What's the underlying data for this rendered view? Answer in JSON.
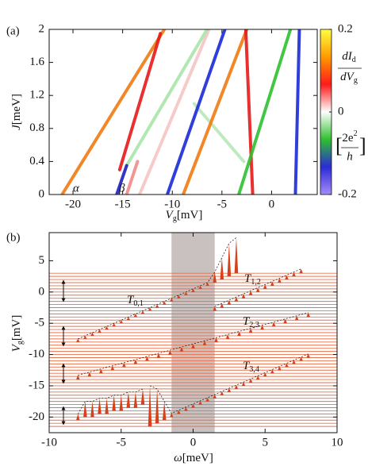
{
  "chart_data": [
    {
      "type": "line",
      "panel_label": "(a)",
      "x_label": {
        "var": "V",
        "sub": "g",
        "unit": "[mV]"
      },
      "y_label": {
        "var": "J",
        "unit": "[meV]"
      },
      "xlim": [
        -22.4,
        4.6
      ],
      "xticks": [
        -20,
        -15,
        -10,
        -5,
        0
      ],
      "ylim": [
        0,
        2
      ],
      "yticks": [
        0,
        0.4,
        0.8,
        1.2,
        1.6,
        2
      ],
      "series": [
        {
          "color": "#f6c4c4",
          "x": [
            -13.3,
            -6.3
          ],
          "values": [
            0,
            2
          ]
        },
        {
          "color": "#b8e8b8",
          "x": [
            -2.8,
            -7.8
          ],
          "values": [
            0.4,
            1.1
          ]
        },
        {
          "color": "#a8e4a8",
          "x": [
            -14.6,
            -6.5
          ],
          "values": [
            0.35,
            2
          ]
        },
        {
          "color": "#f08a8a",
          "x": [
            -14.6,
            -13.5
          ],
          "values": [
            0,
            0.4
          ]
        },
        {
          "color": "#f07a10",
          "x": [
            -21.1,
            -10.8
          ],
          "values": [
            0,
            2
          ]
        },
        {
          "color": "#e51a1a",
          "x": [
            -15.3,
            -11.2
          ],
          "values": [
            0.3,
            1.95
          ]
        },
        {
          "color": "#2020c0",
          "x": [
            -15.6,
            -14.6
          ],
          "values": [
            0,
            0.35
          ]
        },
        {
          "color": "#1a2ad8",
          "x": [
            -10.5,
            -4.7
          ],
          "values": [
            0,
            2
          ]
        },
        {
          "color": "#f07a10",
          "x": [
            -8.9,
            -2.5
          ],
          "values": [
            0,
            2
          ]
        },
        {
          "color": "#e51a1a",
          "x": [
            -1.9,
            -2.6
          ],
          "values": [
            0,
            2
          ]
        },
        {
          "color": "#2fc02f",
          "x": [
            -3.3,
            1.9
          ],
          "values": [
            0,
            2
          ]
        },
        {
          "color": "#1a2ad8",
          "x": [
            2.4,
            2.8
          ],
          "values": [
            0,
            2
          ]
        }
      ],
      "annotations": [
        "α",
        "β"
      ],
      "colorbar": {
        "lim": [
          -0.2,
          0.2
        ],
        "ticks": [
          -0.2,
          0,
          0.2
        ],
        "colors": [
          "#a58cf8",
          "#2b2bd6",
          "#2fbf2f",
          "#ffffff",
          "#ff1a1a",
          "#ff9a00",
          "#ffff40"
        ],
        "label": {
          "num": "dI",
          "num_sub": "d",
          "den": "dV",
          "den_sub": "g",
          "open": "[",
          "unit_num": "2e",
          "unit_sup": "2",
          "unit_den": "h",
          "close": "]"
        }
      }
    },
    {
      "type": "waterfall",
      "panel_label": "(b)",
      "x_label": {
        "var": "ω",
        "unit": "[meV]"
      },
      "y_label": {
        "var": "V",
        "sub": "g",
        "unit": "[mV]"
      },
      "xlim": [
        -10,
        10
      ],
      "xticks": [
        -10,
        -5,
        0,
        5,
        10
      ],
      "ylim": [
        -22.5,
        9.5
      ],
      "yticks": [
        -20,
        -15,
        -10,
        -5,
        0,
        5
      ],
      "shade": [
        -1.5,
        1.5
      ],
      "shade_color": "#b5acaa",
      "baselines": [
        -21.5,
        -21,
        -20.5,
        -20,
        -19.5,
        -19,
        -18.5,
        -18,
        -17.5,
        -17,
        -16.5,
        -16,
        -15.5,
        -15,
        -14.5,
        -14,
        -13.5,
        -13,
        -12.5,
        -12,
        -11.5,
        -11,
        -10.5,
        -10,
        -9.5,
        -9,
        -8.5,
        -8,
        -7.5,
        -7,
        -6.5,
        -6,
        -5.5,
        -5,
        -4.5,
        -4,
        -3.5,
        -3,
        -2.5,
        -2,
        -1.5,
        -1,
        -0.5,
        0,
        0.5,
        1,
        1.5,
        2,
        2.5,
        3
      ],
      "baseline_color": "#e8704c",
      "spike_color": "#d8401a",
      "bands": [
        {
          "x": [
            -8,
            -7.5,
            -7,
            -6.5,
            -6,
            -5.5,
            -5,
            -4.5,
            -4,
            -3.5,
            -3,
            -2.5,
            -2,
            -1.5,
            -1,
            -0.5,
            0,
            0.5,
            1,
            1.5,
            2,
            2.5,
            3
          ],
          "base": [
            -8,
            -7.5,
            -7,
            -6.5,
            -6,
            -5.5,
            -5,
            -4.5,
            -4,
            -3.5,
            -3,
            -2.5,
            -2,
            -1.5,
            -1,
            -0.5,
            0,
            0.5,
            1,
            1.5,
            2,
            2.5,
            3
          ],
          "values": [
            -7.5,
            -7,
            -6.5,
            -6,
            -5.5,
            -5,
            -4.5,
            -4,
            -3.5,
            -3,
            -2.5,
            -2,
            -1.5,
            -1,
            -0.5,
            0,
            0.5,
            1,
            1.5,
            3.2,
            5.5,
            7.8,
            8.7
          ]
        },
        {
          "x": [
            1.5,
            2,
            2.5,
            3,
            3.5,
            4,
            4.5,
            5,
            5.5,
            6,
            6.5,
            7,
            7.5
          ],
          "base": [
            -3,
            -2.5,
            -2,
            -1.5,
            -1,
            -0.5,
            0,
            0.5,
            1,
            1.5,
            2,
            2.5,
            3
          ],
          "values": [
            -2.3,
            -1.8,
            -1.3,
            -0.8,
            -0.3,
            0.2,
            0.7,
            1.2,
            1.7,
            2.2,
            2.7,
            3.2,
            3.7
          ]
        },
        {
          "x": [
            -8,
            -7.2,
            -6.4,
            -5.6,
            -4.8,
            -4,
            -3.2,
            -2.4,
            -1.6,
            -0.8,
            0,
            0.8,
            1.6,
            2.4,
            3.2,
            4,
            4.8,
            5.6,
            6.4,
            7.2,
            8
          ],
          "base": [
            -14,
            -13.5,
            -13,
            -12.5,
            -12,
            -11.5,
            -11,
            -10.5,
            -10,
            -9.5,
            -9,
            -8.5,
            -8,
            -7.5,
            -7,
            -6.5,
            -6,
            -5.5,
            -5,
            -4.5,
            -4
          ],
          "values": [
            -13.3,
            -12.8,
            -12.3,
            -11.8,
            -11.3,
            -10.8,
            -10.3,
            -9.8,
            -9.3,
            -8.8,
            -8.3,
            -7.8,
            -7.3,
            -6.8,
            -6.3,
            -5.8,
            -5.3,
            -4.8,
            -4.3,
            -3.8,
            -3.3
          ]
        },
        {
          "x": [
            -8,
            -7.5,
            -7,
            -6.5,
            -6,
            -5.5,
            -5,
            -4.5,
            -4,
            -3.5
          ],
          "base": [
            -20.5,
            -20,
            -20,
            -19.5,
            -19.5,
            -19,
            -19,
            -18.5,
            -18.5,
            -18
          ],
          "values": [
            -19.5,
            -17.5,
            -17.5,
            -17,
            -17,
            -16.5,
            -16.5,
            -16,
            -16,
            -15.5
          ]
        },
        {
          "x": [
            -3,
            -2.5,
            -2,
            -1.5,
            -1,
            -0.5,
            0,
            0.5,
            1,
            1.5,
            2,
            2.5,
            3,
            3.5,
            4,
            4.5,
            5,
            5.5,
            6,
            6.5,
            7,
            7.5,
            8
          ],
          "base": [
            -21.5,
            -21,
            -20.5,
            -20,
            -19.5,
            -19,
            -18.5,
            -18,
            -17.5,
            -17,
            -16.5,
            -16,
            -15.5,
            -15,
            -14.5,
            -14,
            -13.5,
            -13,
            -12.5,
            -12,
            -11.5,
            -11,
            -10.5
          ],
          "values": [
            -15,
            -15.5,
            -17.5,
            -19.4,
            -18.9,
            -18.4,
            -17.9,
            -17.4,
            -16.9,
            -16.4,
            -15.9,
            -15.4,
            -14.9,
            -14.4,
            -13.9,
            -13.4,
            -12.9,
            -12.4,
            -11.9,
            -11.4,
            -10.9,
            -10.4,
            -9.9
          ]
        }
      ],
      "band_labels": [
        {
          "text": "T",
          "sub": "0,1"
        },
        {
          "text": "T",
          "sub": "1,2"
        },
        {
          "text": "T",
          "sub": "2,3"
        },
        {
          "text": "T",
          "sub": "3,4"
        }
      ]
    }
  ]
}
